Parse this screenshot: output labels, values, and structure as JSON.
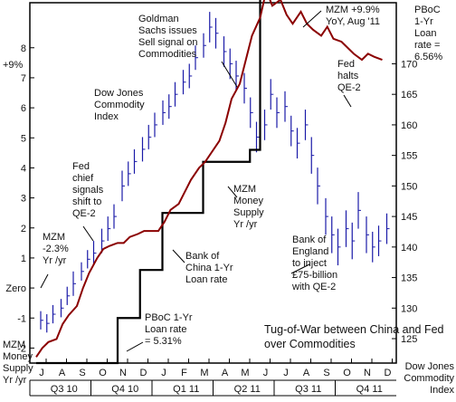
{
  "chart_data": {
    "type": "line",
    "title": "Tug-of-War between China and Fed over Commodities",
    "left_axis": {
      "label_top": "+9%",
      "label_bottom": [
        "MZM",
        "Money",
        "Supply",
        "Yr /yr"
      ],
      "ticks": [
        "8",
        "7",
        "6",
        "5",
        "4",
        "3",
        "2",
        "1",
        "Zero",
        "-1",
        "-2"
      ],
      "range": [
        -2.5,
        9.5
      ]
    },
    "right_axis": {
      "label_top": [
        "PBoC",
        "1-Yr",
        "Loan",
        "rate =",
        "6.56%"
      ],
      "label_bottom": [
        "Dow Jones",
        "Commodity",
        "Index"
      ],
      "ticks": [
        "170",
        "165",
        "160",
        "155",
        "150",
        "145",
        "140",
        "135",
        "130",
        "125"
      ],
      "range": [
        121,
        180
      ]
    },
    "x_axis": {
      "months": [
        "J",
        "A",
        "S",
        "O",
        "N",
        "D",
        "J",
        "F",
        "M",
        "A",
        "M",
        "J",
        "J",
        "A",
        "S",
        "O",
        "N",
        "D"
      ],
      "quarters": [
        "Q3 10",
        "Q4 10",
        "Q1 11",
        "Q2 11",
        "Q3 11",
        "Q4 11"
      ]
    },
    "series": [
      {
        "name": "MZM Money Supply Yr /yr",
        "color": "#8b0000",
        "x": [
          0,
          0.3,
          0.6,
          1,
          1.3,
          1.6,
          2,
          2.3,
          2.6,
          3,
          3.3,
          3.6,
          4,
          4.3,
          4.6,
          5,
          5.3,
          5.6,
          6,
          6.3,
          6.6,
          7,
          7.3,
          7.6,
          8,
          8.3,
          8.6,
          9,
          9.3,
          9.6,
          10,
          10.3,
          10.6,
          11,
          11.3,
          11.6,
          12,
          12.3,
          12.6,
          13,
          13.3,
          13.6,
          14,
          14.3,
          14.6,
          15,
          15.3,
          15.6,
          16,
          16.3,
          16.6,
          17
        ],
        "y": [
          -2.3,
          -2.0,
          -1.8,
          -1.7,
          -1.2,
          -0.9,
          -0.6,
          0.0,
          0.5,
          1.0,
          1.3,
          1.4,
          1.5,
          1.5,
          1.7,
          1.8,
          1.9,
          1.9,
          1.9,
          2.2,
          2.6,
          2.8,
          3.2,
          3.6,
          4.0,
          4.2,
          4.5,
          4.9,
          5.5,
          6.3,
          6.8,
          7.6,
          8.4,
          9.0,
          9.9,
          9.4,
          9.6,
          9.1,
          8.8,
          9.2,
          8.8,
          8.6,
          8.4,
          8.7,
          8.3,
          8.2,
          8.0,
          7.8,
          7.6,
          7.8,
          7.7,
          7.6
        ]
      },
      {
        "name": "PBoC 1-Yr Loan rate",
        "color": "#000000",
        "type": "step",
        "x": [
          0,
          3.3,
          4.0,
          5.1,
          6.2,
          8.2,
          10.5,
          11.0,
          17
        ],
        "y": [
          -2.5,
          -2.5,
          -1.0,
          0.6,
          2.5,
          4.2,
          4.6,
          9.9,
          9.9
        ]
      },
      {
        "name": "Dow Jones Commodity Index",
        "color": "#1a1aa8",
        "type": "hlc",
        "x": [
          0,
          0.3,
          0.6,
          1,
          1.3,
          1.6,
          2,
          2.3,
          2.6,
          3,
          3.3,
          3.6,
          4,
          4.3,
          4.6,
          5,
          5.3,
          5.6,
          6,
          6.3,
          6.6,
          7,
          7.3,
          7.6,
          8,
          8.3,
          8.6,
          9,
          9.3,
          9.6,
          10,
          10.3,
          10.6,
          11,
          11.3,
          11.6,
          12,
          12.3,
          12.6,
          13,
          13.3,
          13.6,
          14,
          14.3,
          14.6,
          15,
          15.3,
          15.6,
          16,
          16.3,
          16.6,
          17
        ],
        "y": [
          128,
          127.5,
          129,
          130,
          132,
          134,
          136,
          138,
          139,
          141,
          143,
          145,
          150,
          152,
          154,
          156,
          158,
          160,
          162,
          163,
          165,
          167,
          168,
          171,
          173,
          176,
          175,
          172,
          170,
          168,
          166,
          162,
          158,
          160,
          165,
          162,
          163,
          159,
          157,
          160,
          155,
          150,
          145,
          142,
          140,
          143,
          141,
          146,
          142,
          140,
          141,
          143
        ],
        "range": [
          3,
          3,
          3,
          3,
          3,
          4,
          3,
          3,
          4,
          4,
          4,
          4,
          5,
          4,
          4,
          4,
          4,
          4,
          4,
          4,
          4,
          4,
          4,
          4,
          4,
          5,
          5,
          5,
          5,
          5,
          5,
          5,
          5,
          5,
          5,
          5,
          5,
          5,
          5,
          5,
          6,
          6,
          6,
          6,
          6,
          6,
          6,
          6,
          6,
          5,
          5,
          5
        ]
      }
    ],
    "annotations": [
      {
        "id": "goldman",
        "lines": [
          "Goldman",
          "Sachs issues",
          "Sell signal on",
          "Commodities"
        ]
      },
      {
        "id": "mzm-peak",
        "lines": [
          "MZM +9.9%",
          "YoY, Aug '11"
        ]
      },
      {
        "id": "fed-halts",
        "lines": [
          "Fed",
          "halts",
          "QE-2"
        ]
      },
      {
        "id": "djci-label",
        "lines": [
          "Dow Jones",
          "Commodity",
          "Index"
        ]
      },
      {
        "id": "fed-chief",
        "lines": [
          "Fed",
          "chief",
          "signals",
          "shift to",
          "QE-2"
        ]
      },
      {
        "id": "mzm-series-label",
        "lines": [
          "MZM",
          "Money",
          "Supply",
          "Yr /yr"
        ]
      },
      {
        "id": "mzm-low",
        "lines": [
          "MZM",
          "-2.3%",
          "Yr /yr"
        ]
      },
      {
        "id": "boc-rate",
        "lines": [
          "Bank of",
          "China 1-Yr",
          "Loan rate"
        ]
      },
      {
        "id": "boe",
        "lines": [
          "Bank of",
          "England",
          "to inject",
          "£75-billion",
          "with QE-2"
        ]
      },
      {
        "id": "pboc-low",
        "lines": [
          "PBoC 1-Yr",
          "Loan rate",
          "= 5.31%"
        ]
      }
    ]
  }
}
